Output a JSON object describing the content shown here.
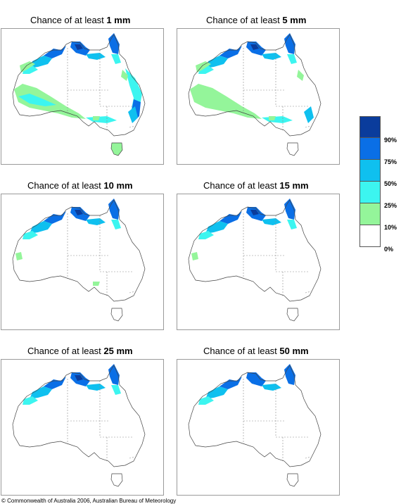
{
  "panels": [
    {
      "prefix": "Chance of at least",
      "amount": "1 mm",
      "level": 0
    },
    {
      "prefix": "Chance of at least",
      "amount": "5 mm",
      "level": 1
    },
    {
      "prefix": "Chance of at least",
      "amount": "10 mm",
      "level": 2
    },
    {
      "prefix": "Chance of at least",
      "amount": "15 mm",
      "level": 3
    },
    {
      "prefix": "Chance of at least",
      "amount": "25 mm",
      "level": 4
    },
    {
      "prefix": "Chance of at least",
      "amount": "50 mm",
      "level": 5
    }
  ],
  "legend": {
    "colors": [
      "#0a3c9c",
      "#0a6fe6",
      "#0fc0ef",
      "#3cf5f0",
      "#94f59a",
      "#ffffff"
    ],
    "labels": [
      "90%",
      "75%",
      "50%",
      "25%",
      "10%",
      "0%"
    ]
  },
  "copyright": "© Commonwealth of Australia 2006, Australian Bureau of Meteorology"
}
